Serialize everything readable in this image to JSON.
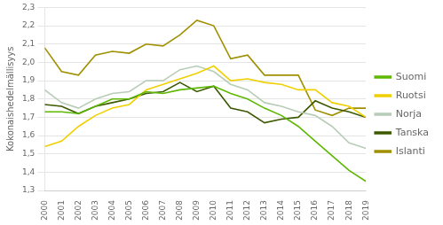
{
  "chart_data": {
    "type": "line",
    "x": [
      2000,
      2001,
      2002,
      2003,
      2004,
      2005,
      2006,
      2007,
      2008,
      2009,
      2010,
      2011,
      2012,
      2013,
      2014,
      2015,
      2016,
      2017,
      2018,
      2019
    ],
    "series": [
      {
        "name": "Suomi",
        "color": "#5cb800",
        "values": [
          1.73,
          1.73,
          1.72,
          1.76,
          1.8,
          1.8,
          1.84,
          1.83,
          1.85,
          1.86,
          1.87,
          1.83,
          1.8,
          1.75,
          1.71,
          1.65,
          1.57,
          1.49,
          1.41,
          1.35
        ]
      },
      {
        "name": "Ruotsi",
        "color": "#f0d000",
        "values": [
          1.54,
          1.57,
          1.65,
          1.71,
          1.75,
          1.77,
          1.85,
          1.88,
          1.91,
          1.94,
          1.98,
          1.9,
          1.91,
          1.89,
          1.88,
          1.85,
          1.85,
          1.78,
          1.76,
          1.7
        ]
      },
      {
        "name": "Norja",
        "color": "#b8ccb8",
        "values": [
          1.85,
          1.78,
          1.75,
          1.8,
          1.83,
          1.84,
          1.9,
          1.9,
          1.96,
          1.98,
          1.95,
          1.88,
          1.85,
          1.78,
          1.76,
          1.73,
          1.71,
          1.65,
          1.56,
          1.53
        ]
      },
      {
        "name": "Tanska",
        "color": "#3d5a00",
        "values": [
          1.77,
          1.76,
          1.72,
          1.76,
          1.78,
          1.8,
          1.83,
          1.84,
          1.89,
          1.84,
          1.87,
          1.75,
          1.73,
          1.67,
          1.69,
          1.7,
          1.79,
          1.75,
          1.73,
          1.7
        ]
      },
      {
        "name": "Islanti",
        "color": "#a09000",
        "values": [
          2.08,
          1.95,
          1.93,
          2.04,
          2.06,
          2.05,
          2.1,
          2.09,
          2.15,
          2.23,
          2.2,
          2.02,
          2.04,
          1.93,
          1.93,
          1.93,
          1.74,
          1.71,
          1.75,
          1.75
        ]
      }
    ],
    "y_label": "Kokonaishedelmällisyys",
    "xlim": [
      2000,
      2019
    ],
    "xticks": [
      2000,
      2001,
      2002,
      2003,
      2004,
      2005,
      2006,
      2007,
      2008,
      2009,
      2010,
      2011,
      2012,
      2013,
      2014,
      2015,
      2016,
      2017,
      2018,
      2019
    ],
    "ylim": [
      1.3,
      2.3
    ],
    "yticks": [
      {
        "value": 1.3,
        "label": "1,3"
      },
      {
        "value": 1.4,
        "label": "1,4"
      },
      {
        "value": 1.5,
        "label": "1,5"
      },
      {
        "value": 1.6,
        "label": "1,6"
      },
      {
        "value": 1.7,
        "label": "1,7"
      },
      {
        "value": 1.8,
        "label": "1,8"
      },
      {
        "value": 1.9,
        "label": "1,9"
      },
      {
        "value": 2.0,
        "label": "2,0"
      },
      {
        "value": 2.1,
        "label": "2,1"
      },
      {
        "value": 2.2,
        "label": "2,2"
      },
      {
        "value": 2.3,
        "label": "2,3"
      }
    ],
    "grid": "y",
    "legend": "right"
  }
}
